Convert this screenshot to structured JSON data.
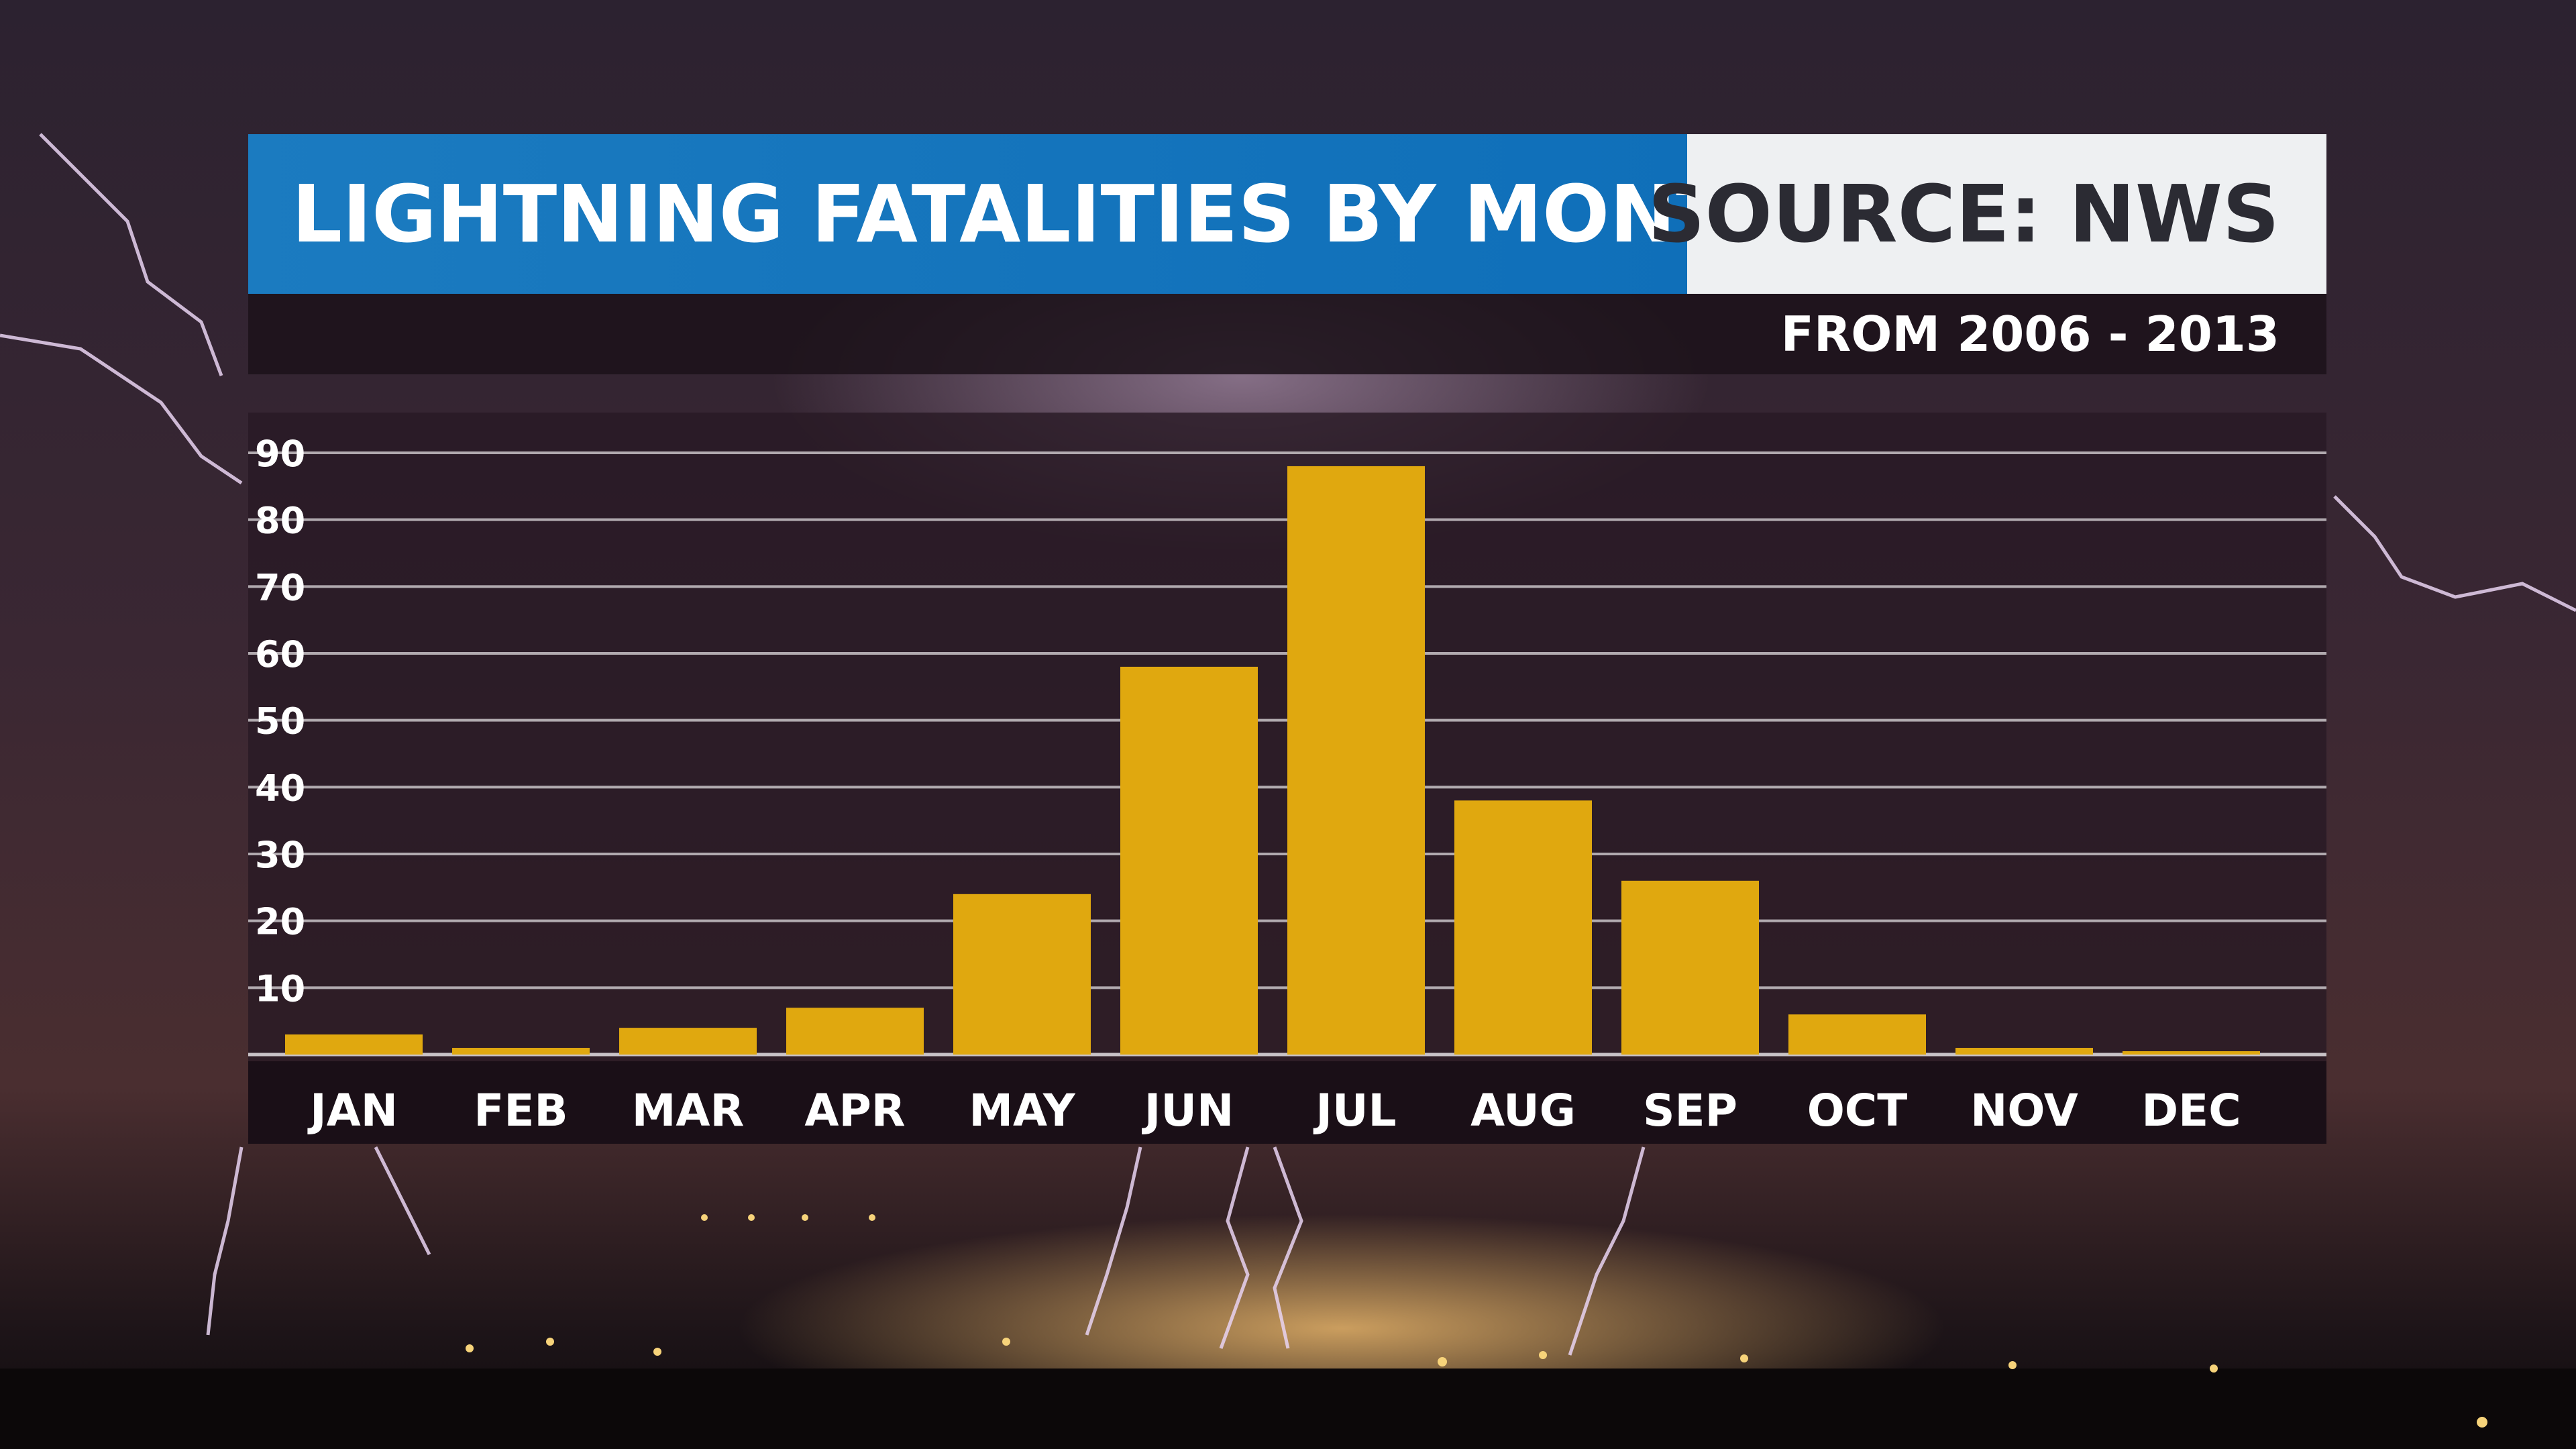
{
  "header": {
    "title": "LIGHTNING FATALITIES BY MONTH",
    "source": "SOURCE: NWS",
    "subtitle": "FROM 2006 - 2013"
  },
  "colors": {
    "bar": "#e0a80f",
    "header_blue": "#1b7bc0",
    "header_white": "#eef0f2",
    "gridline": "#c9c3c7",
    "text": "#ffffff"
  },
  "chart_data": {
    "type": "bar",
    "title": "LIGHTNING FATALITIES BY MONTH",
    "subtitle": "FROM 2006 - 2013",
    "source": "SOURCE: NWS",
    "categories": [
      "JAN",
      "FEB",
      "MAR",
      "APR",
      "MAY",
      "JUN",
      "JUL",
      "AUG",
      "SEP",
      "OCT",
      "NOV",
      "DEC"
    ],
    "values": [
      3,
      1,
      4,
      7,
      24,
      58,
      88,
      38,
      26,
      6,
      1,
      0.5
    ],
    "yticks": [
      10,
      20,
      30,
      40,
      50,
      60,
      70,
      80,
      90
    ],
    "ylim": [
      0,
      90
    ],
    "grid": true,
    "legend": "none",
    "xlabel": "",
    "ylabel": ""
  }
}
